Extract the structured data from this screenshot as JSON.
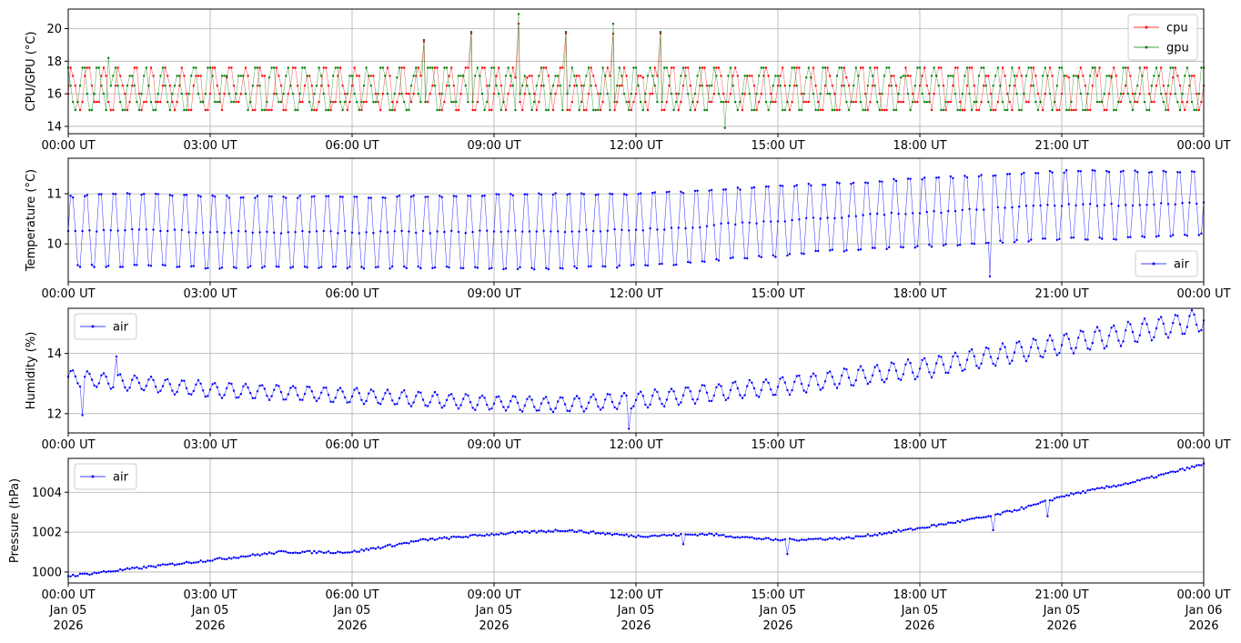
{
  "chart_data": [
    {
      "type": "line",
      "ylabel": "CPU/GPU (°C)",
      "ylim": [
        13.55,
        21.2
      ],
      "yticks": [
        14,
        16,
        18,
        20
      ],
      "xlim_hours": [
        0,
        24
      ],
      "grid": true,
      "legend": "top-right",
      "series": [
        {
          "name": "cpu",
          "color": "#ff0000",
          "range": [
            15,
            17.5
          ],
          "period_minutes": 20,
          "spikes": [
            [
              7.52,
              19.2
            ],
            [
              8.52,
              19.7
            ],
            [
              9.52,
              20.3
            ],
            [
              10.52,
              19.7
            ],
            [
              11.52,
              19.7
            ],
            [
              12.52,
              19.7
            ]
          ]
        },
        {
          "name": "gpu",
          "color": "#008000",
          "range": [
            15,
            17.5
          ],
          "period_minutes": 20,
          "spikes": [
            [
              0.85,
              18.2
            ],
            [
              7.52,
              19.3
            ],
            [
              8.52,
              19.8
            ],
            [
              9.52,
              20.9
            ],
            [
              10.52,
              19.8
            ],
            [
              11.52,
              20.3
            ],
            [
              12.52,
              19.8
            ],
            [
              13.88,
              13.9
            ]
          ]
        }
      ]
    },
    {
      "type": "line",
      "ylabel": "Temperature (°C)",
      "ylim": [
        9.24,
        11.71
      ],
      "yticks": [
        10,
        11
      ],
      "grid": true,
      "legend": "bottom-right",
      "period_minutes": 18,
      "series": [
        {
          "name": "air",
          "color": "#0000ff",
          "hours": [
            0,
            1,
            2,
            3,
            4,
            5,
            6,
            7,
            8,
            9,
            10,
            11,
            12,
            13,
            14,
            15,
            16,
            17,
            18,
            19,
            20,
            21,
            22,
            23,
            24
          ],
          "min": [
            9.45,
            9.45,
            9.45,
            9.42,
            9.42,
            9.42,
            9.42,
            9.42,
            9.42,
            9.4,
            9.4,
            9.42,
            9.45,
            9.5,
            9.6,
            9.65,
            9.75,
            9.8,
            9.85,
            9.9,
            9.95,
            10.0,
            10.0,
            10.05,
            10.1
          ],
          "max": [
            11.05,
            11.1,
            11.1,
            11.05,
            11.05,
            11.05,
            11.05,
            11.05,
            11.05,
            11.1,
            11.1,
            11.1,
            11.1,
            11.15,
            11.2,
            11.25,
            11.3,
            11.35,
            11.4,
            11.45,
            11.5,
            11.55,
            11.55,
            11.55,
            11.55
          ],
          "spikes": [
            [
              19.48,
              9.35
            ]
          ]
        }
      ]
    },
    {
      "type": "line",
      "ylabel": "Humidity (%)",
      "ylim": [
        11.36,
        15.5
      ],
      "yticks": [
        12,
        14
      ],
      "grid": true,
      "legend": "top-left",
      "period_minutes": 20,
      "series": [
        {
          "name": "air",
          "color": "#0000ff",
          "hours": [
            0,
            3,
            6,
            9,
            10.5,
            12,
            15,
            18,
            21,
            24
          ],
          "mean": [
            13.2,
            12.8,
            12.6,
            12.35,
            12.3,
            12.45,
            12.9,
            13.5,
            14.3,
            15.1
          ],
          "amplitude": [
            0.25,
            0.25,
            0.25,
            0.25,
            0.25,
            0.28,
            0.3,
            0.33,
            0.36,
            0.38
          ],
          "spikes": [
            [
              0.3,
              11.95
            ],
            [
              1.02,
              13.9
            ],
            [
              11.85,
              11.5
            ]
          ]
        }
      ]
    },
    {
      "type": "line",
      "ylabel": "Pressure (hPa)",
      "ylim": [
        999.45,
        1005.7
      ],
      "yticks": [
        1000,
        1002,
        1004
      ],
      "grid": true,
      "legend": "top-left",
      "series": [
        {
          "name": "air",
          "color": "#0000ff",
          "hours": [
            0,
            1.5,
            3,
            4.5,
            6,
            7.5,
            9,
            10.5,
            12,
            13.5,
            15,
            16.5,
            18,
            19.5,
            20.5,
            21,
            22.5,
            24
          ],
          "values": [
            999.8,
            1000.2,
            1000.6,
            1001.0,
            1001.0,
            1001.6,
            1001.9,
            1002.1,
            1001.8,
            1001.9,
            1001.6,
            1001.7,
            1002.2,
            1002.8,
            1003.4,
            1003.8,
            1004.5,
            1005.4
          ],
          "spikes": [
            [
              13.0,
              1001.4
            ],
            [
              15.2,
              1000.9
            ],
            [
              19.55,
              1002.1
            ],
            [
              20.7,
              1002.8
            ]
          ]
        }
      ]
    }
  ],
  "xticks": [
    "00:00 UT",
    "03:00 UT",
    "06:00 UT",
    "09:00 UT",
    "12:00 UT",
    "15:00 UT",
    "18:00 UT",
    "21:00 UT",
    "00:00 UT"
  ],
  "xtick_dates": [
    "Jan 05",
    "Jan 05",
    "Jan 05",
    "Jan 05",
    "Jan 05",
    "Jan 05",
    "Jan 05",
    "Jan 05",
    "Jan 06"
  ],
  "xtick_year": "2026"
}
